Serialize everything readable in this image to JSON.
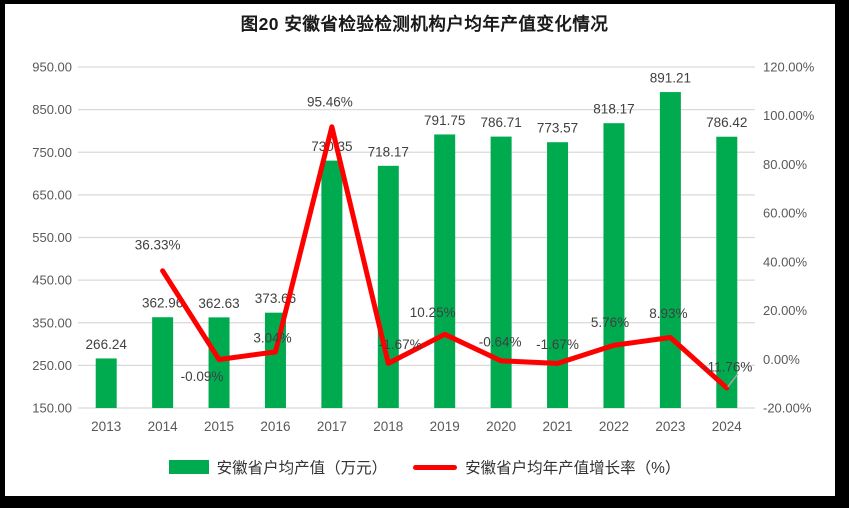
{
  "title": "图20 安徽省检验检测机构户均年产值变化情况",
  "legend": [
    {
      "label": "安徽省户均产值（万元）",
      "type": "bar"
    },
    {
      "label": "安徽省户均年产值增长率（%）",
      "type": "line"
    }
  ],
  "colors": {
    "bar": "#00AB50",
    "line": "#FF0000",
    "grid": "#D9D9D9",
    "tick_text": "#595959",
    "data_label": "#404040",
    "leader": "#A6A6A6",
    "frame": "#000000"
  },
  "chart_data": {
    "type": "bar",
    "subtype": "combo-bar-line",
    "title": "图20 安徽省检验检测机构户均年产值变化情况",
    "categories": [
      "2013",
      "2014",
      "2015",
      "2016",
      "2017",
      "2018",
      "2019",
      "2020",
      "2021",
      "2022",
      "2023",
      "2024"
    ],
    "series": [
      {
        "name": "安徽省户均产值（万元）",
        "type": "bar",
        "axis": "left",
        "color": "#00AB50",
        "values": [
          266.24,
          362.96,
          362.63,
          373.66,
          730.35,
          718.17,
          791.75,
          786.71,
          773.57,
          818.17,
          891.21,
          786.42
        ],
        "labels": [
          "266.24",
          "362.96",
          "362.63",
          "373.66",
          "730.35",
          "718.17",
          "791.75",
          "786.71",
          "773.57",
          "818.17",
          "891.21",
          "786.42"
        ]
      },
      {
        "name": "安徽省户均年产值增长率（%）",
        "type": "line",
        "axis": "right",
        "color": "#FF0000",
        "values": [
          null,
          36.33,
          -0.09,
          3.04,
          95.46,
          -1.67,
          10.25,
          -0.64,
          -1.67,
          5.76,
          8.93,
          -11.76
        ],
        "labels": [
          null,
          "36.33%",
          "-0.09%",
          "3.04%",
          "95.46%",
          "-1.67%",
          "10.25%",
          "-0.64%",
          "-1.67%",
          "5.76%",
          "8.93%",
          "-11.76%"
        ]
      }
    ],
    "left_axis": {
      "min": 150,
      "max": 950,
      "step": 100,
      "ticks": [
        "950.00",
        "850.00",
        "750.00",
        "650.00",
        "550.00",
        "450.00",
        "350.00",
        "250.00",
        "150.00"
      ]
    },
    "right_axis": {
      "min": -20,
      "max": 120,
      "step": 20,
      "ticks": [
        "120.00%",
        "100.00%",
        "80.00%",
        "60.00%",
        "40.00%",
        "20.00%",
        "0.00%",
        "-20.00%"
      ]
    },
    "grid": true,
    "legend_position": "bottom",
    "layout_hints": {
      "bar_label_dy": -14,
      "line_label_offsets": [
        null,
        [
          -5,
          -26
        ],
        [
          -17,
          17
        ],
        [
          -3,
          -14
        ],
        [
          -2,
          -25
        ],
        [
          12,
          -19
        ],
        [
          -12,
          -22
        ],
        [
          -1,
          -19
        ],
        [
          0,
          -19
        ],
        [
          -4,
          -23
        ],
        [
          -2,
          -24
        ],
        [
          1,
          -21
        ]
      ],
      "leader_on_index": 11
    }
  }
}
